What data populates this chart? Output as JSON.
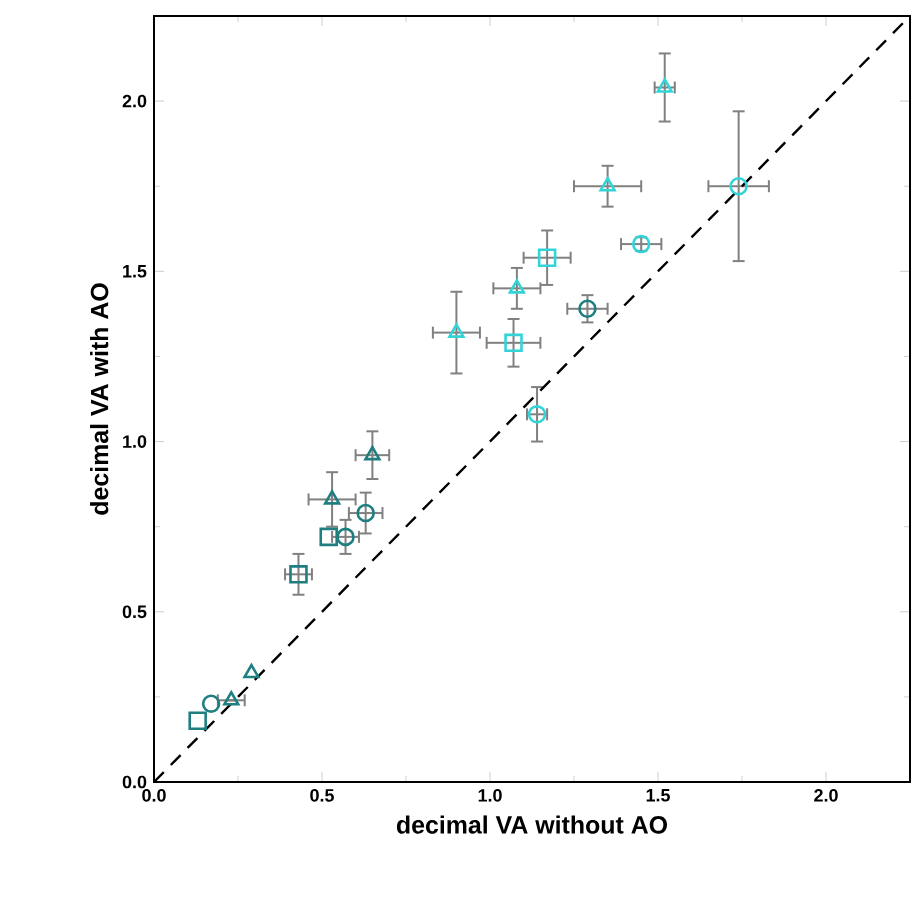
{
  "chart_data": {
    "type": "scatter",
    "xlabel": "decimal VA without AO",
    "ylabel": "decimal VA with AO",
    "xlim": [
      0,
      2.25
    ],
    "ylim": [
      0,
      2.25
    ],
    "xticks": [
      {
        "value": 0,
        "label": "0.0"
      },
      0.5,
      {
        "value": 1,
        "label": "1.0"
      },
      1.5,
      {
        "value": 2,
        "label": "2.0"
      }
    ],
    "yticks": [
      {
        "value": 0,
        "label": "0.0"
      },
      0.5,
      {
        "value": 1,
        "label": "1.0"
      },
      1.5,
      {
        "value": 2,
        "label": "2.0"
      }
    ],
    "grid": false,
    "series": [
      {
        "color": "#33d4d8",
        "marker": "triangle",
        "x": [
          1.52,
          1.35,
          1.08,
          0.9
        ],
        "values": [
          2.04,
          1.75,
          1.45,
          1.32
        ],
        "errors": [
          0.1,
          0.06,
          0.06,
          0.12
        ],
        "xerrors": [
          0.03,
          0.1,
          0.07,
          0.07
        ]
      },
      {
        "color": "#33d4d8",
        "marker": "square",
        "x": [
          1.17,
          1.07
        ],
        "values": [
          1.54,
          1.29
        ],
        "errors": [
          0.08,
          0.07
        ],
        "xerrors": [
          0.07,
          0.08
        ]
      },
      {
        "color": "#33d4d8",
        "marker": "circle",
        "x": [
          1.74,
          1.45,
          1.14
        ],
        "values": [
          1.75,
          1.58,
          1.08
        ],
        "errors": [
          0.22,
          0.02,
          0.08
        ],
        "xerrors": [
          0.09,
          0.06,
          0.03
        ]
      },
      {
        "color": "#1f7f80",
        "marker": "triangle",
        "x": [
          0.65,
          0.53,
          0.29,
          0.23
        ],
        "values": [
          0.96,
          0.83,
          0.32,
          0.24
        ],
        "errors": [
          0.07,
          0.08,
          null,
          null
        ],
        "xerrors": [
          0.05,
          0.07,
          null,
          0.04
        ]
      },
      {
        "color": "#1f7f80",
        "marker": "square",
        "x": [
          0.43,
          0.52,
          0.13
        ],
        "values": [
          0.61,
          0.72,
          0.18
        ],
        "errors": [
          0.06,
          null,
          null
        ],
        "xerrors": [
          0.04,
          null,
          null
        ]
      },
      {
        "color": "#1f7f80",
        "marker": "circle",
        "x": [
          1.29,
          0.63,
          0.57,
          0.17
        ],
        "values": [
          1.39,
          0.79,
          0.72,
          0.23
        ],
        "errors": [
          0.04,
          0.06,
          0.05,
          null
        ],
        "xerrors": [
          0.06,
          0.05,
          0.04,
          null
        ]
      },
      {
        "type": "line",
        "color": "#000000",
        "marker": "none",
        "line_style": "dashed",
        "x": [
          0,
          2.25
        ],
        "values": [
          0,
          2.25
        ]
      }
    ]
  }
}
